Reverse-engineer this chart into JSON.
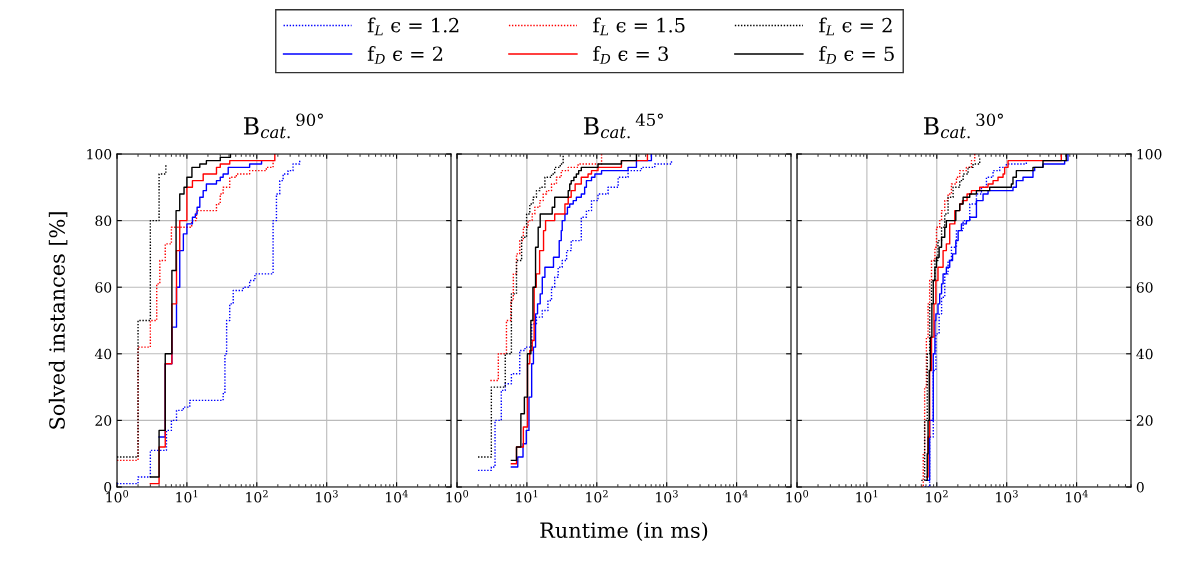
{
  "chart_data": [
    {
      "type": "step",
      "title": "B$_{cat.}$$^{90°}$",
      "ylabel": "Solved instances [%]",
      "log": "x",
      "grid": true,
      "legend": "top",
      "xlim": [
        1,
        60000
      ],
      "ylim": [
        0,
        100
      ],
      "xticks": [
        {
          "value": 1,
          "label": "10$^{0}$"
        },
        {
          "value": 10,
          "label": "10$^{1}$"
        },
        {
          "value": 100,
          "label": "10$^{2}$"
        },
        {
          "value": 1000,
          "label": "10$^{3}$"
        },
        {
          "value": 10000,
          "label": "10$^{4}$"
        }
      ],
      "yticks": [
        0,
        20,
        40,
        60,
        80,
        100
      ],
      "series": [
        {
          "name": "f$_{L}$ ϵ = 1.2",
          "color": "#0000ff",
          "line_style": "dotted",
          "x": [
            1.0,
            2.0,
            3.0,
            5.1,
            6.0,
            7.1,
            8.9,
            11,
            33,
            35,
            37,
            41,
            46,
            64,
            79,
            94,
            171,
            191,
            213,
            238,
            280,
            330,
            411
          ],
          "values": [
            1,
            3,
            11,
            17,
            20,
            23,
            24,
            26,
            28,
            40,
            50,
            55,
            59,
            60,
            62,
            64,
            80,
            88,
            92,
            94,
            95,
            97,
            98
          ]
        },
        {
          "name": "f$_{L}$ ϵ = 1.5",
          "color": "#ff0000",
          "line_style": "dotted",
          "x": [
            1.0,
            2.0,
            3.0,
            3.7,
            4.1,
            4.9,
            6.0,
            11.7,
            13.7,
            26.5,
            30,
            33,
            41,
            51,
            79,
            137,
            171
          ],
          "values": [
            8,
            42,
            50,
            61,
            68,
            73,
            78,
            80,
            83,
            85,
            88,
            90,
            93,
            94,
            95,
            96,
            98
          ]
        },
        {
          "name": "f$_{L}$ ϵ = 2",
          "color": "#000000",
          "line_style": "dotted",
          "x": [
            1.0,
            2.0,
            3.0,
            4.0,
            5.0
          ],
          "values": [
            9,
            50,
            80,
            94,
            97
          ]
        },
        {
          "name": "f$_{D}$ ϵ = 2",
          "color": "#0000ff",
          "line_style": "solid",
          "x": [
            4.0,
            4.9,
            6.1,
            7.1,
            7.9,
            8.9,
            10,
            12,
            13.2,
            14,
            15.3,
            17.1,
            19,
            26.5,
            30,
            33,
            39,
            79,
            117
          ],
          "values": [
            15,
            37,
            48,
            60,
            71,
            76,
            79,
            81,
            82,
            84,
            87,
            89,
            91,
            92,
            93,
            94,
            96,
            97,
            98
          ]
        },
        {
          "name": "f$_{D}$ ϵ = 3",
          "color": "#ff0000",
          "line_style": "solid",
          "x": [
            3.0,
            4.0,
            4.9,
            6.1,
            7.1,
            7.9,
            10,
            12,
            17.1,
            26.5,
            30,
            41,
            181
          ],
          "values": [
            1,
            12,
            37,
            55,
            71,
            80,
            90,
            92,
            94,
            96,
            97,
            98,
            100
          ]
        },
        {
          "name": "f$_{D}$ ϵ = 5",
          "color": "#000000",
          "line_style": "solid",
          "x": [
            3.0,
            4.0,
            4.9,
            6.1,
            7.0,
            7.9,
            9.1,
            10,
            11.8,
            15.3,
            19,
            30,
            42
          ],
          "values": [
            3,
            17,
            40,
            65,
            83,
            88,
            90,
            93,
            96,
            97,
            98,
            99,
            100
          ]
        }
      ]
    },
    {
      "type": "step",
      "title": "B$_{cat.}$$^{45°}$",
      "xlabel": "Runtime (in ms)",
      "log": "x",
      "grid": true,
      "tick_labels": "x",
      "xlim": [
        1,
        60000
      ],
      "ylim": [
        0,
        100
      ],
      "xticks": [
        {
          "value": 1,
          "label": "10$^{0}$"
        },
        {
          "value": 10,
          "label": "10$^{1}$"
        },
        {
          "value": 100,
          "label": "10$^{2}$"
        },
        {
          "value": 1000,
          "label": "10$^{3}$"
        },
        {
          "value": 10000,
          "label": "10$^{4}$"
        }
      ],
      "yticks": [
        0,
        20,
        40,
        60,
        80,
        100
      ],
      "series": [
        {
          "color": "#0000ff",
          "line_style": "dotted",
          "x": [
            2.0,
            3.1,
            3.5,
            4.3,
            4.9,
            6.0,
            7.9,
            9.4,
            11.7,
            13.7,
            16.6,
            20,
            22.5,
            25,
            28,
            32,
            37,
            43,
            60,
            71,
            84,
            104,
            145,
            202,
            280,
            435,
            674,
            1170
          ],
          "values": [
            5,
            6,
            20,
            29,
            31,
            34,
            41,
            42,
            49,
            51,
            53,
            56,
            60,
            63,
            66,
            68,
            71,
            74,
            81,
            83,
            86,
            88,
            90,
            93,
            95,
            96,
            97,
            98
          ]
        },
        {
          "color": "#ff0000",
          "line_style": "dotted",
          "x": [
            3.0,
            3.9,
            5.1,
            5.9,
            6.4,
            7.1,
            7.9,
            8.9,
            10.4,
            11.9,
            13,
            15.3,
            17.1,
            19.1,
            22.5,
            26.5,
            31,
            39,
            54,
            117
          ],
          "values": [
            32,
            40,
            50,
            56,
            64,
            70,
            74,
            78,
            80,
            82,
            84,
            86,
            88,
            89,
            91,
            93,
            95,
            96,
            97,
            100
          ]
        },
        {
          "color": "#000000",
          "line_style": "dotted",
          "x": [
            2.0,
            3.1,
            4.9,
            6.0,
            7.1,
            8.4,
            9.9,
            11,
            12.3,
            13.7,
            15.3,
            18.1,
            22.5,
            25,
            30,
            33
          ],
          "values": [
            9,
            30,
            40,
            58,
            68,
            75,
            82,
            85,
            87,
            89,
            90,
            93,
            94,
            96,
            97,
            100
          ]
        },
        {
          "color": "#0000ff",
          "line_style": "solid",
          "x": [
            6.0,
            7.4,
            8.8,
            9.8,
            10.7,
            11.7,
            12.4,
            13.3,
            14.2,
            15.5,
            16.6,
            18.1,
            24,
            29,
            31,
            32,
            35,
            38,
            41,
            46,
            51,
            60,
            67,
            71,
            84,
            94,
            117,
            280,
            369,
            604
          ],
          "values": [
            6,
            9,
            13,
            17,
            27,
            37,
            42,
            52,
            55,
            58,
            63,
            66,
            69,
            74,
            77,
            80,
            82,
            84,
            85,
            86,
            87,
            88,
            90,
            92,
            93,
            94,
            95,
            96,
            98,
            100
          ]
        },
        {
          "color": "#ff0000",
          "line_style": "solid",
          "x": [
            6.0,
            7.1,
            8.9,
            10.2,
            11,
            11.9,
            12.7,
            13.6,
            15.2,
            17.3,
            18.5,
            25,
            35,
            39,
            43,
            49,
            60,
            75,
            84,
            104,
            225,
            530
          ],
          "values": [
            7,
            12,
            18,
            37,
            41,
            44,
            60,
            64,
            71,
            77,
            80,
            82,
            85,
            87,
            89,
            91,
            93,
            94,
            95,
            96,
            98,
            100
          ]
        },
        {
          "color": "#000000",
          "line_style": "solid",
          "x": [
            6.0,
            7.1,
            8.2,
            9.2,
            10.2,
            11.4,
            12.2,
            13.3,
            14.5,
            15.5,
            23,
            25,
            39,
            41,
            43,
            47,
            51,
            55,
            60,
            104,
            225,
            369
          ],
          "values": [
            8,
            12,
            22,
            27,
            40,
            50,
            60,
            72,
            78,
            82,
            84,
            87,
            89,
            91,
            92,
            93,
            94,
            95,
            96,
            97,
            98,
            100
          ]
        }
      ]
    },
    {
      "type": "step",
      "title": "B$_{cat.}$$^{30°}$",
      "log": "x",
      "grid": true,
      "xlim": [
        1,
        60000
      ],
      "ylim": [
        0,
        100
      ],
      "xticks": [
        {
          "value": 1,
          "label": "10$^{0}$"
        },
        {
          "value": 10,
          "label": "10$^{1}$"
        },
        {
          "value": 100,
          "label": "10$^{2}$"
        },
        {
          "value": 1000,
          "label": "10$^{3}$"
        },
        {
          "value": 10000,
          "label": "10$^{4}$"
        }
      ],
      "yticks": [
        0,
        20,
        40,
        60,
        80,
        100
      ],
      "series": [
        {
          "color": "#0000ff",
          "line_style": "dotted",
          "x": [
            67,
            79,
            89,
            97,
            108,
            117,
            130,
            145,
            162,
            191,
            238,
            296,
            369,
            435,
            513,
            638,
            794,
            989,
            1910
          ],
          "values": [
            0,
            15,
            35,
            46,
            52,
            57,
            64,
            68,
            72,
            77,
            80,
            85,
            88,
            90,
            93,
            95,
            96,
            97,
            98
          ]
        },
        {
          "color": "#ff0000",
          "line_style": "dotted",
          "x": [
            60,
            64,
            67,
            71,
            75,
            79,
            84,
            94,
            99,
            110,
            117,
            130,
            145,
            162,
            191,
            213,
            265,
            313,
            349
          ],
          "values": [
            0,
            10,
            30,
            45,
            55,
            62,
            68,
            72,
            78,
            80,
            83,
            86,
            88,
            91,
            93,
            95,
            96,
            98,
            100
          ]
        },
        {
          "color": "#000000",
          "line_style": "dotted",
          "x": [
            60,
            67,
            73,
            79,
            84,
            94,
            104,
            117,
            130,
            145,
            171,
            213,
            238,
            280,
            330,
            411
          ],
          "values": [
            2,
            20,
            40,
            55,
            62,
            68,
            74,
            78,
            82,
            87,
            90,
            92,
            94,
            96,
            97,
            99
          ]
        },
        {
          "color": "#0000ff",
          "line_style": "solid",
          "x": [
            71,
            79,
            89,
            94,
            97,
            104,
            110,
            117,
            123,
            137,
            153,
            168,
            187,
            202,
            225,
            265,
            296,
            369,
            459,
            541,
            1230,
            1374,
            1711,
            2377,
            2512,
            3304,
            6745,
            7516
          ],
          "values": [
            2,
            20,
            40,
            50,
            52,
            55,
            58,
            61,
            64,
            66,
            68,
            70,
            74,
            77,
            79,
            80,
            81,
            86,
            88,
            89,
            90,
            92,
            93,
            95,
            96,
            97,
            98,
            100
          ]
        },
        {
          "color": "#ff0000",
          "line_style": "solid",
          "x": [
            71,
            75,
            79,
            84,
            91,
            97,
            104,
            123,
            137,
            153,
            181,
            213,
            233,
            271,
            313,
            411,
            541,
            638,
            751,
            887,
            935,
            1045,
            6040
          ],
          "values": [
            3,
            15,
            35,
            45,
            55,
            62,
            66,
            71,
            73,
            79,
            83,
            85,
            86,
            88,
            89,
            90,
            91,
            92,
            93,
            94,
            96,
            98,
            100
          ]
        },
        {
          "color": "#000000",
          "line_style": "solid",
          "x": [
            70,
            73,
            75,
            78,
            81,
            85,
            89,
            94,
            99,
            108,
            117,
            130,
            137,
            187,
            213,
            238,
            296,
            369,
            571,
            1166,
            1230,
            1374,
            2377,
            3304,
            7110
          ],
          "values": [
            2,
            10,
            20,
            35,
            45,
            55,
            62,
            66,
            69,
            72,
            75,
            78,
            80,
            83,
            85,
            87,
            88,
            89,
            90,
            91,
            93,
            95,
            96,
            98,
            100
          ]
        }
      ]
    }
  ]
}
